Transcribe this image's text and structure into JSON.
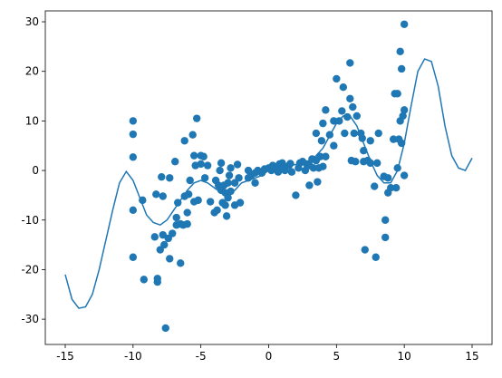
{
  "chart_data": {
    "type": "combo",
    "xlim": [
      -16.47,
      16.47
    ],
    "ylim": [
      -35.1,
      32.2
    ],
    "xticks": [
      -15,
      -10,
      -5,
      0,
      5,
      10,
      15
    ],
    "yticks": [
      -30,
      -20,
      -10,
      0,
      10,
      20,
      30
    ],
    "series": [
      {
        "type": "line",
        "color": "#1f77b4",
        "x": [
          -15,
          -14.5,
          -14,
          -13.5,
          -13,
          -12.5,
          -12,
          -11.5,
          -11,
          -10.5,
          -10,
          -9.5,
          -9,
          -8.5,
          -8,
          -7.5,
          -7,
          -6.5,
          -6,
          -5.5,
          -5,
          -4.5,
          -4,
          -3.5,
          -3,
          -2.5,
          -2,
          -1.5,
          -1,
          -0.5,
          0,
          0.5,
          1,
          1.5,
          2,
          2.5,
          3,
          3.5,
          4,
          4.5,
          5,
          5.5,
          6,
          6.5,
          7,
          7.5,
          8,
          8.5,
          9,
          9.5,
          10,
          10.5,
          11,
          11.5,
          12,
          12.5,
          13,
          13.5,
          14,
          14.5,
          15
        ],
        "values": [
          -21,
          -26,
          -27.8,
          -27.5,
          -25,
          -20,
          -14,
          -8,
          -2.5,
          -0.2,
          -2,
          -5.5,
          -9,
          -10.5,
          -11,
          -10,
          -8,
          -6,
          -4,
          -2.5,
          -2,
          -2.5,
          -3.5,
          -4.5,
          -4.5,
          -4,
          -2.5,
          -2,
          -1.5,
          -1,
          0,
          0.5,
          1,
          1,
          1.2,
          1.5,
          2,
          3,
          4.5,
          7,
          9.5,
          11,
          11,
          9,
          5.5,
          2,
          -1,
          -2.5,
          -2.5,
          0,
          5.5,
          13,
          20,
          22.5,
          22,
          17,
          9,
          3,
          0.5,
          0,
          2.5
        ]
      },
      {
        "type": "scatter",
        "color": "#1f77b4",
        "x": [
          -10,
          -10,
          -10,
          -10,
          -10,
          -9.3,
          -9.2,
          -8.4,
          -8.3,
          -8.2,
          -8.2,
          -8,
          -7.9,
          -7.8,
          -7.8,
          -7.7,
          -7.6,
          -7.4,
          -7.3,
          -7.3,
          -7.1,
          -6.9,
          -6.8,
          -6.8,
          -6.7,
          -6.5,
          -6.5,
          -6.3,
          -6.2,
          -6.2,
          -6,
          -6,
          -5.9,
          -5.8,
          -5.6,
          -5.5,
          -5.5,
          -5.4,
          -5.3,
          -5.2,
          -5,
          -5,
          -4.8,
          -4.7,
          -4.5,
          -4.3,
          -4,
          -3.9,
          -3.8,
          -3.7,
          -3.6,
          -3.5,
          -3.5,
          -3.4,
          -3.3,
          -3.2,
          -3.2,
          -3.1,
          -3,
          -3,
          -2.9,
          -2.8,
          -2.8,
          -2.5,
          -2.5,
          -2.3,
          -2.2,
          -2.1,
          -1.5,
          -1.5,
          -1.3,
          -1,
          -1,
          -0.8,
          -0.5,
          -0.3,
          0,
          0.2,
          0.3,
          0.5,
          0.7,
          0.8,
          1,
          1,
          1.2,
          1.5,
          1.6,
          1.7,
          2,
          2.2,
          2.3,
          2.5,
          2.7,
          2.8,
          3,
          3,
          3.2,
          3.3,
          3.5,
          3.5,
          3.6,
          3.7,
          3.8,
          3.9,
          4,
          4,
          4.2,
          4.2,
          4.5,
          4.8,
          4.8,
          5,
          5.2,
          5.4,
          5.5,
          5.6,
          5.8,
          6,
          6,
          6.1,
          6.2,
          6.3,
          6.4,
          6.5,
          6.8,
          6.9,
          7,
          7,
          7.1,
          7.3,
          7.5,
          7.5,
          7.8,
          7.9,
          8,
          8.1,
          8.5,
          8.6,
          8.6,
          8.8,
          8.8,
          9,
          9.2,
          9.3,
          9.4,
          9.5,
          9.5,
          9.6,
          9.7,
          9.7,
          9.8,
          9.8,
          9.9,
          10,
          10,
          10
        ],
        "values": [
          10,
          7.3,
          2.7,
          -8,
          -17.5,
          -6,
          -22,
          -13.4,
          -4.8,
          -21.8,
          -22.5,
          -16,
          -1.3,
          -13,
          -5.2,
          -15,
          -31.8,
          -13.7,
          -17.8,
          -1.5,
          -12.7,
          1.8,
          -9.5,
          -11,
          -6.5,
          -18.7,
          -10.8,
          -11,
          6,
          -5.2,
          -10.8,
          -8.5,
          -4.8,
          -2,
          7.2,
          3,
          -6.3,
          1,
          10.5,
          -6,
          3,
          1.3,
          2.8,
          -1.5,
          1,
          -6.3,
          -8.5,
          -2,
          -8,
          -3,
          0,
          1.5,
          -4,
          -6.5,
          -3,
          -4.5,
          -7,
          -9.2,
          -2.5,
          -5.5,
          -1,
          -4.2,
          0.5,
          -2.5,
          -7,
          1.2,
          -1.5,
          -6.5,
          0,
          -1.5,
          -1,
          -0.5,
          -2.5,
          0,
          -0.5,
          0.3,
          0.5,
          0,
          1,
          0.5,
          -0.3,
          1.3,
          0.8,
          1.5,
          0,
          1,
          1.4,
          -0.3,
          -5,
          0.5,
          1.5,
          1.8,
          0,
          1.3,
          1,
          -3,
          2.3,
          0.5,
          7.5,
          2,
          -2.3,
          0.5,
          2.8,
          6,
          9.5,
          0.8,
          12.2,
          2.8,
          7.2,
          5,
          10,
          18.5,
          10,
          12,
          16.8,
          7.5,
          10.8,
          21.7,
          14.5,
          2,
          12.8,
          7.5,
          1.8,
          11,
          7.5,
          6.5,
          4,
          1.8,
          -16,
          2,
          6,
          1.5,
          -3.2,
          -17.5,
          1.5,
          7.5,
          -1.2,
          -10,
          -13.5,
          -1.5,
          -4.5,
          -3.5,
          6.3,
          15.5,
          -3.5,
          0.5,
          15.5,
          6.3,
          10,
          24,
          20.5,
          5.5,
          11,
          12.2,
          29.5,
          -1
        ]
      }
    ]
  }
}
